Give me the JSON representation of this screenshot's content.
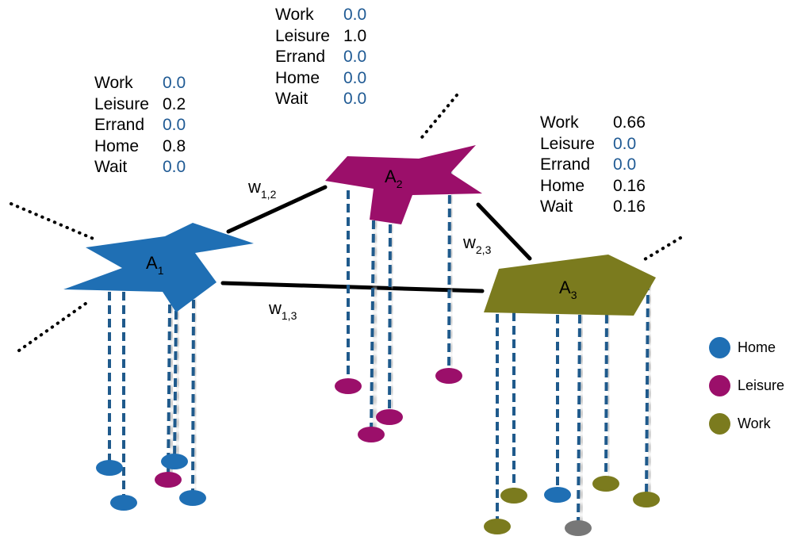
{
  "colors": {
    "home": "#1f6fb4",
    "leisure": "#9b0f6a",
    "work": "#7b7b1e",
    "other": "#777777",
    "zero_value": "#1f5a94",
    "dash": "#1f5a8c"
  },
  "tables": [
    {
      "id": "a1",
      "rows": [
        {
          "label": "Work",
          "value": "0.0",
          "zero": true
        },
        {
          "label": "Leisure",
          "value": "0.2",
          "zero": false
        },
        {
          "label": "Errand",
          "value": "0.0",
          "zero": true
        },
        {
          "label": "Home",
          "value": "0.8",
          "zero": false
        },
        {
          "label": "Wait",
          "value": "0.0",
          "zero": true
        }
      ]
    },
    {
      "id": "a2",
      "rows": [
        {
          "label": "Work",
          "value": "0.0",
          "zero": true
        },
        {
          "label": "Leisure",
          "value": "1.0",
          "zero": false
        },
        {
          "label": "Errand",
          "value": "0.0",
          "zero": true
        },
        {
          "label": "Home",
          "value": "0.0",
          "zero": true
        },
        {
          "label": "Wait",
          "value": "0.0",
          "zero": true
        }
      ]
    },
    {
      "id": "a3",
      "rows": [
        {
          "label": "Work",
          "value": "0.66",
          "zero": false
        },
        {
          "label": "Leisure",
          "value": "0.0",
          "zero": true
        },
        {
          "label": "Errand",
          "value": "0.0",
          "zero": true
        },
        {
          "label": "Home",
          "value": "0.16",
          "zero": false
        },
        {
          "label": "Wait",
          "value": "0.16",
          "zero": false
        }
      ]
    }
  ],
  "nodes": [
    {
      "id": "a1",
      "base": "A",
      "sub": "1"
    },
    {
      "id": "a2",
      "base": "A",
      "sub": "2"
    },
    {
      "id": "a3",
      "base": "A",
      "sub": "3"
    }
  ],
  "edges": [
    {
      "id": "w12",
      "base": "w",
      "sub": "1,2"
    },
    {
      "id": "w23",
      "base": "w",
      "sub": "2,3"
    },
    {
      "id": "w13",
      "base": "w",
      "sub": "1,3"
    }
  ],
  "legend": [
    {
      "label": "Home",
      "color_key": "home"
    },
    {
      "label": "Leisure",
      "color_key": "leisure"
    },
    {
      "label": "Work",
      "color_key": "work"
    }
  ]
}
